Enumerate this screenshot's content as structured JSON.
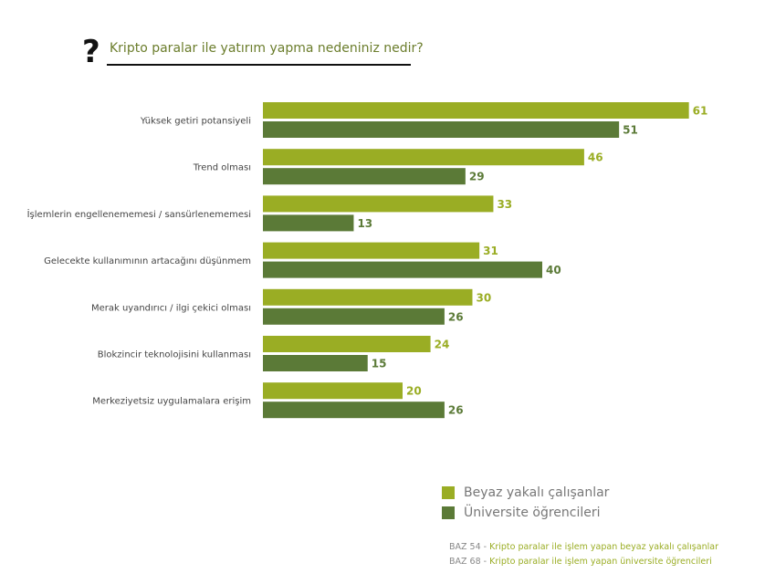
{
  "header": {
    "question_icon": "?",
    "title": "Kripto paralar ile yatırım yapma nedeniniz nedir?"
  },
  "colors": {
    "series_1": "#9aad24",
    "series_2": "#5b7a37",
    "title": "#6b7d2c"
  },
  "chart_data": {
    "type": "bar",
    "orientation": "horizontal",
    "title": "Kripto paralar ile yatırım yapma nedeniniz nedir?",
    "categories": [
      "Yüksek getiri potansiyeli",
      "Trend olması",
      "İşlemlerin engellenememesi / sansürlenememesi",
      "Gelecekte kullanımının artacağını düşünmem",
      "Merak uyandırıcı / ilgi çekici olması",
      "Blokzincir teknolojisini kullanması",
      "Merkeziyetsiz uygulamalara erişim"
    ],
    "series": [
      {
        "name": "Beyaz yakalı çalışanlar",
        "values": [
          61,
          46,
          33,
          31,
          30,
          24,
          20
        ]
      },
      {
        "name": "Üniversite öğrencileri",
        "values": [
          51,
          29,
          13,
          40,
          26,
          15,
          26
        ]
      }
    ],
    "xlim": [
      0,
      62
    ],
    "grid": false,
    "legend_position": "bottom-right",
    "data_labels": true
  },
  "legend": {
    "items": [
      {
        "label": "Beyaz yakalı çalışanlar"
      },
      {
        "label": "Üniversite öğrencileri"
      }
    ]
  },
  "base_notes": [
    {
      "key": "BAZ 54",
      "sep": " - ",
      "text": "Kripto paralar ile işlem yapan beyaz yakalı çalışanlar"
    },
    {
      "key": "BAZ 68",
      "sep": " - ",
      "text": "Kripto paralar ile işlem yapan üniversite öğrencileri"
    }
  ]
}
